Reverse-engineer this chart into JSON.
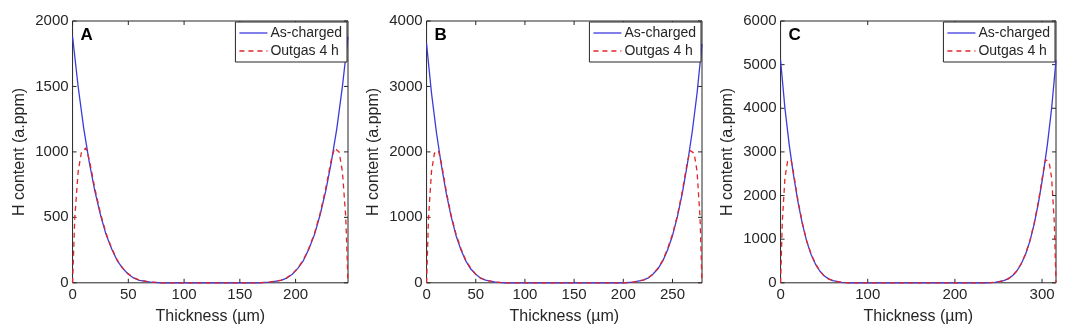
{
  "chart_data": [
    {
      "type": "line",
      "annotations": [
        "A"
      ],
      "xlabel": "Thickness (µm)",
      "ylabel": "H content (a.ppm)",
      "xlim": [
        0,
        247
      ],
      "xticks": [
        0,
        50,
        100,
        150,
        200
      ],
      "ylim": [
        0,
        2000
      ],
      "yticks": [
        0,
        500,
        1000,
        1500,
        2000
      ],
      "grid": false,
      "legend": "top right",
      "marker": "none",
      "series": [
        {
          "name": "As-charged",
          "color": "#3b3bdc",
          "line_style": "solid",
          "x": [
            0,
            5,
            10,
            15,
            20,
            25,
            30,
            35,
            40,
            45,
            50,
            55,
            60,
            70,
            80,
            167,
            177,
            187,
            192,
            197,
            202,
            207,
            212,
            217,
            222,
            227,
            232,
            237,
            242,
            247
          ],
          "values": [
            1880,
            1500,
            1180,
            920,
            700,
            520,
            370,
            260,
            170,
            110,
            65,
            35,
            18,
            5,
            0,
            0,
            5,
            18,
            35,
            65,
            110,
            170,
            260,
            370,
            520,
            700,
            920,
            1180,
            1500,
            1880
          ]
        },
        {
          "name": "Outgas 4 h",
          "color": "#e0262a",
          "line_style": "dashed",
          "x": [
            0,
            2,
            5,
            8,
            12,
            15,
            20,
            25,
            30,
            35,
            40,
            45,
            50,
            55,
            60,
            70,
            80,
            167,
            177,
            187,
            192,
            197,
            202,
            207,
            212,
            217,
            222,
            227,
            232,
            235,
            239,
            242,
            245,
            247
          ],
          "values": [
            0,
            500,
            850,
            1000,
            1030,
            940,
            720,
            530,
            380,
            265,
            175,
            112,
            68,
            38,
            20,
            6,
            0,
            0,
            6,
            20,
            38,
            68,
            112,
            175,
            265,
            380,
            530,
            720,
            940,
            1030,
            1000,
            850,
            500,
            0
          ]
        }
      ]
    },
    {
      "type": "line",
      "annotations": [
        "B"
      ],
      "xlabel": "Thickness (µm)",
      "ylabel": "H content (a.ppm)",
      "xlim": [
        0,
        280
      ],
      "xticks": [
        0,
        50,
        100,
        150,
        200,
        250
      ],
      "ylim": [
        0,
        4000
      ],
      "yticks": [
        0,
        1000,
        2000,
        3000,
        4000
      ],
      "grid": false,
      "legend": "top right",
      "marker": "none",
      "series": [
        {
          "name": "As-charged",
          "color": "#3b3bdc",
          "line_style": "solid",
          "x": [
            0,
            5,
            10,
            15,
            20,
            25,
            30,
            35,
            40,
            45,
            50,
            55,
            60,
            70,
            80,
            200,
            210,
            220,
            225,
            230,
            235,
            240,
            245,
            250,
            255,
            260,
            265,
            270,
            275,
            280
          ],
          "values": [
            3650,
            2900,
            2300,
            1800,
            1370,
            1010,
            720,
            500,
            330,
            210,
            130,
            70,
            40,
            10,
            0,
            0,
            10,
            40,
            70,
            130,
            210,
            330,
            500,
            720,
            1010,
            1370,
            1800,
            2300,
            2900,
            3650
          ]
        },
        {
          "name": "Outgas 4 h",
          "color": "#e0262a",
          "line_style": "dashed",
          "x": [
            0,
            2,
            5,
            8,
            12,
            15,
            20,
            25,
            30,
            35,
            40,
            45,
            50,
            55,
            60,
            70,
            80,
            200,
            210,
            220,
            225,
            230,
            235,
            240,
            245,
            250,
            255,
            260,
            265,
            268,
            272,
            275,
            278,
            280
          ],
          "values": [
            0,
            1000,
            1700,
            1980,
            2020,
            1840,
            1400,
            1030,
            740,
            520,
            340,
            220,
            130,
            70,
            40,
            10,
            0,
            0,
            10,
            40,
            70,
            130,
            220,
            340,
            520,
            740,
            1030,
            1400,
            1840,
            2020,
            1980,
            1700,
            1000,
            0
          ]
        }
      ]
    },
    {
      "type": "line",
      "annotations": [
        "C"
      ],
      "xlabel": "Thickness (µm)",
      "ylabel": "H content (a.ppm)",
      "xlim": [
        0,
        316
      ],
      "xticks": [
        0,
        100,
        200,
        300
      ],
      "ylim": [
        0,
        6000
      ],
      "yticks": [
        0,
        1000,
        2000,
        3000,
        4000,
        5000,
        6000
      ],
      "grid": false,
      "legend": "top right",
      "marker": "none",
      "series": [
        {
          "name": "As-charged",
          "color": "#3b3bdc",
          "line_style": "solid",
          "x": [
            0,
            5,
            10,
            15,
            20,
            25,
            30,
            35,
            40,
            45,
            50,
            55,
            60,
            70,
            80,
            236,
            246,
            256,
            261,
            266,
            271,
            276,
            281,
            286,
            291,
            296,
            301,
            306,
            311,
            316
          ],
          "values": [
            5100,
            4000,
            3150,
            2450,
            1850,
            1350,
            950,
            650,
            430,
            270,
            160,
            90,
            50,
            10,
            0,
            0,
            10,
            50,
            90,
            160,
            270,
            430,
            650,
            950,
            1350,
            1850,
            2450,
            3150,
            4000,
            5100
          ]
        },
        {
          "name": "Outgas 4 h",
          "color": "#e0262a",
          "line_style": "dashed",
          "x": [
            0,
            2,
            5,
            8,
            12,
            15,
            20,
            25,
            30,
            35,
            40,
            45,
            50,
            55,
            60,
            70,
            80,
            236,
            246,
            256,
            261,
            266,
            271,
            276,
            281,
            286,
            291,
            296,
            301,
            304,
            308,
            311,
            314,
            316
          ],
          "values": [
            0,
            1400,
            2400,
            2780,
            2820,
            2500,
            1880,
            1370,
            960,
            660,
            440,
            270,
            160,
            90,
            50,
            10,
            0,
            0,
            10,
            50,
            90,
            160,
            270,
            440,
            660,
            960,
            1370,
            1880,
            2500,
            2820,
            2780,
            2400,
            1400,
            0
          ]
        }
      ]
    }
  ]
}
